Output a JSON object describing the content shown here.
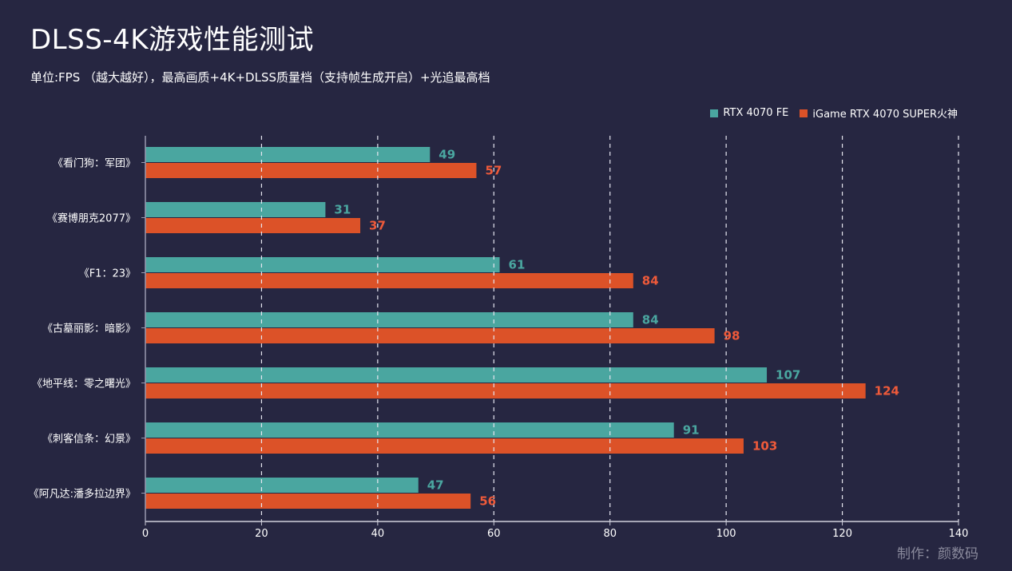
{
  "header": {
    "title": "DLSS-4K游戏性能测试",
    "subtitle": "单位:FPS （越大越好），最高画质+4K+DLSS质量档（支持帧生成开启）+光追最高档"
  },
  "credit": "制作：颜数码",
  "chart_data": {
    "type": "bar",
    "orientation": "horizontal",
    "title": "DLSS-4K游戏性能测试",
    "subtitle": "单位:FPS （越大越好），最高画质+4K+DLSS质量档（支持帧生成开启）+光追最高档",
    "xlabel": "",
    "ylabel": "",
    "categories": [
      "《看门狗：军团》",
      "《赛博朋克2077》",
      "《F1：23》",
      "《古墓丽影：暗影》",
      "《地平线：零之曙光》",
      "《刺客信条：幻景》",
      "《阿凡达:潘多拉边界》"
    ],
    "series": [
      {
        "name": "RTX 4070 FE",
        "color": "#4aa6a0",
        "values": [
          49,
          31,
          61,
          84,
          107,
          91,
          47
        ]
      },
      {
        "name": "iGame RTX 4070 SUPER火神",
        "color": "#dc5228",
        "values": [
          57,
          37,
          84,
          98,
          124,
          103,
          56
        ]
      }
    ],
    "label_colors": [
      "#4aa6a0",
      "#ef5a3a"
    ],
    "xlim": [
      0,
      140
    ],
    "xticks": [
      0,
      20,
      40,
      60,
      80,
      100,
      120,
      140
    ],
    "grid": "vertical-dashed",
    "legend_position": "top-right"
  }
}
